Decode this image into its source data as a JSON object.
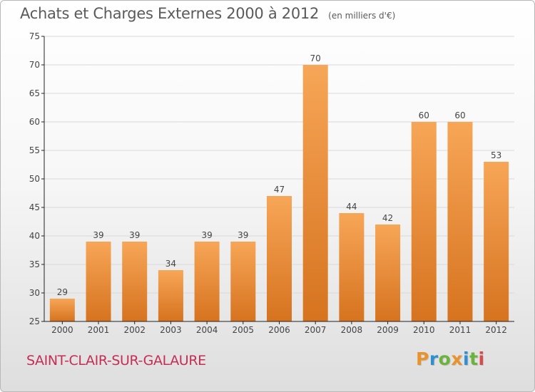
{
  "header": {
    "title": "Achats et Charges Externes 2000 à 2012",
    "unit": "(en milliers d'€)"
  },
  "footer": {
    "commune": "SAINT-CLAIR-SUR-GALAURE",
    "logo_text": "Proxiti",
    "logo_colors": [
      "#e8932b",
      "#2f8fd0",
      "#6bb33d",
      "#e8932b",
      "#2f8fd0",
      "#6bb33d",
      "#d94b4b"
    ]
  },
  "colors": {
    "bar_top": "#f7a657",
    "bar_bottom": "#d6731f",
    "axis": "#222222",
    "grid": "#d9d9d9",
    "title": "#5a5a5a",
    "commune": "#c42e55"
  },
  "chart_data": {
    "type": "bar",
    "categories": [
      "2000",
      "2001",
      "2002",
      "2003",
      "2004",
      "2005",
      "2006",
      "2007",
      "2008",
      "2009",
      "2010",
      "2011",
      "2012"
    ],
    "values": [
      29,
      39,
      39,
      34,
      39,
      39,
      47,
      70,
      44,
      42,
      60,
      60,
      53
    ],
    "data_labels": [
      "29",
      "39",
      "39",
      "34",
      "39",
      "39",
      "47",
      "70",
      "44",
      "42",
      "60",
      "60",
      "53"
    ],
    "y_ticks": [
      25,
      30,
      35,
      40,
      45,
      50,
      55,
      60,
      65,
      70,
      75
    ],
    "ylim": [
      25,
      75
    ],
    "grid": true,
    "legend": "none"
  }
}
